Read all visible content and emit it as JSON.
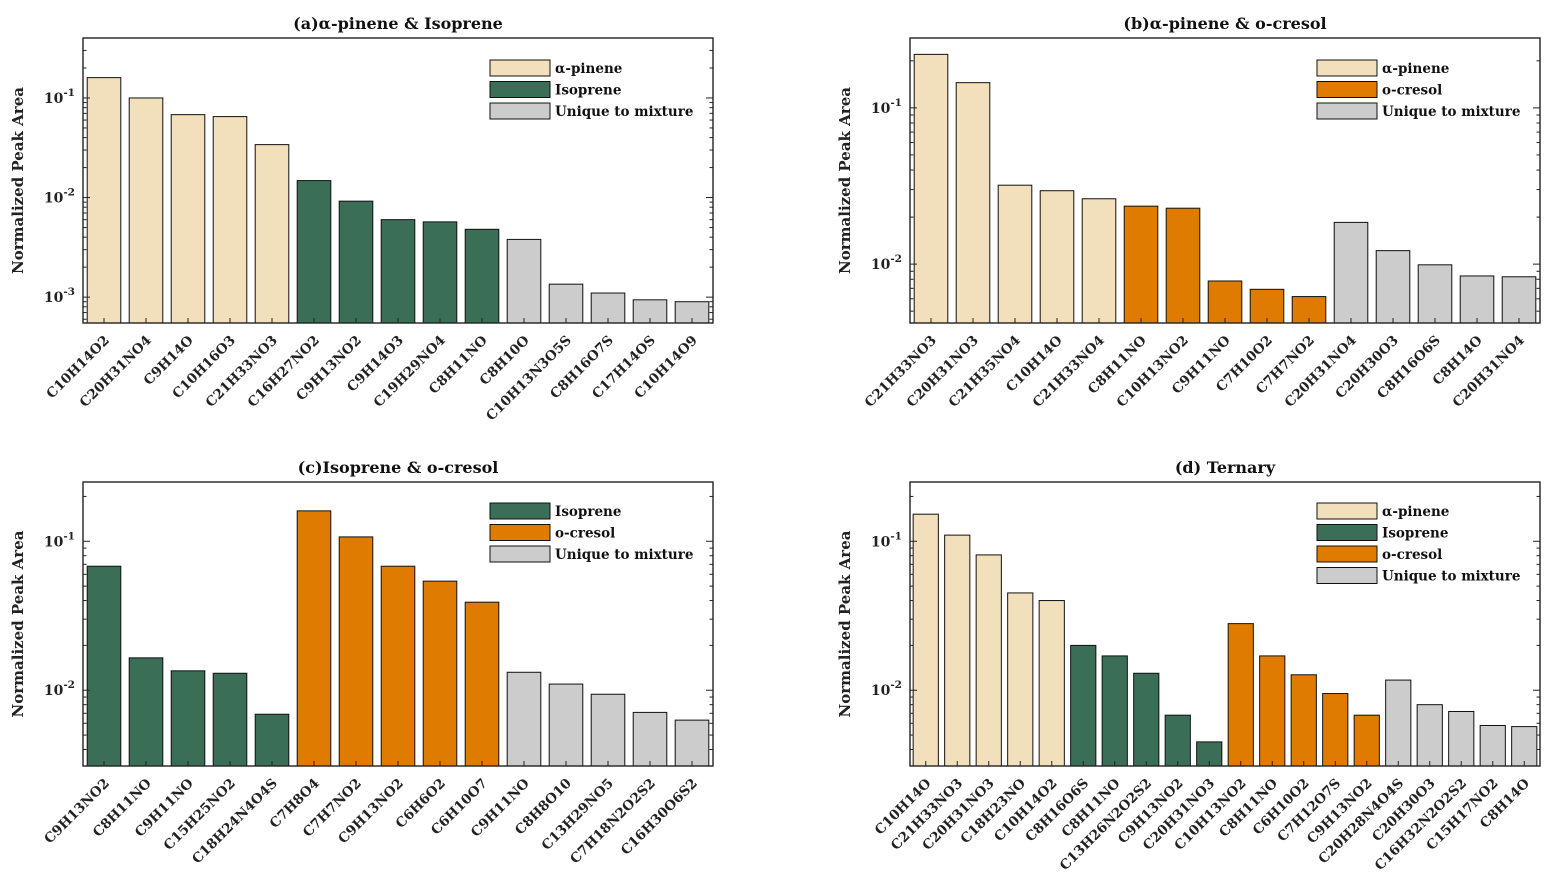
{
  "colors": {
    "alpha_pinene": "#f2dfbb",
    "isoprene": "#3a6e57",
    "o_cresol": "#df7c00",
    "unique": "#cccccc"
  },
  "chart_data": [
    {
      "type": "bar",
      "title": "(a)α-pinene & Isoprene",
      "ylabel": "Normalized Peak Area",
      "yscale": "log",
      "ylim": [
        0.00055,
        0.4
      ],
      "yticks": [
        {
          "v": 0.1,
          "label": "10",
          "exp": "-1"
        },
        {
          "v": 0.01,
          "label": "10",
          "exp": "-2"
        },
        {
          "v": 0.001,
          "label": "10",
          "exp": "-3"
        }
      ],
      "legend": [
        {
          "key": "alpha_pinene",
          "label": "α-pinene"
        },
        {
          "key": "isoprene",
          "label": "Isoprene"
        },
        {
          "key": "unique",
          "label": "Unique to mixture"
        }
      ],
      "legend_position": "top-right",
      "categories": [
        "C10H14O2",
        "C20H31NO4",
        "C9H14O",
        "C10H16O3",
        "C21H33NO3",
        "C16H27NO2",
        "C9H13NO2",
        "C9H14O3",
        "C19H29NO4",
        "C8H11NO",
        "C8H10O",
        "C10H13N3O5S",
        "C8H16O7S",
        "C17H14OS",
        "C10H14O9"
      ],
      "values": [
        0.16,
        0.1,
        0.068,
        0.065,
        0.034,
        0.0148,
        0.0092,
        0.006,
        0.0057,
        0.0048,
        0.0038,
        0.00135,
        0.0011,
        0.00094,
        0.0009
      ],
      "groups": [
        "alpha_pinene",
        "alpha_pinene",
        "alpha_pinene",
        "alpha_pinene",
        "alpha_pinene",
        "isoprene",
        "isoprene",
        "isoprene",
        "isoprene",
        "isoprene",
        "unique",
        "unique",
        "unique",
        "unique",
        "unique"
      ]
    },
    {
      "type": "bar",
      "title": "(b)α-pinene & o-cresol",
      "ylabel": "Normalized Peak Area",
      "yscale": "log",
      "ylim": [
        0.0042,
        0.28
      ],
      "yticks": [
        {
          "v": 0.1,
          "label": "10",
          "exp": "-1"
        },
        {
          "v": 0.01,
          "label": "10",
          "exp": "-2"
        }
      ],
      "legend": [
        {
          "key": "alpha_pinene",
          "label": "α-pinene"
        },
        {
          "key": "o_cresol",
          "label": "o-cresol"
        },
        {
          "key": "unique",
          "label": "Unique to mixture"
        }
      ],
      "legend_position": "top-right",
      "categories": [
        "C21H33NO3",
        "C20H31NO3",
        "C21H35NO4",
        "C10H14O",
        "C21H33NO4",
        "C8H11NO",
        "C10H13NO2",
        "C9H11NO",
        "C7H10O2",
        "C7H7NO2",
        "C20H31NO4",
        "C20H30O3",
        "C8H16O6S",
        "C8H14O",
        "C20H31NO4"
      ],
      "values": [
        0.22,
        0.145,
        0.032,
        0.0295,
        0.0262,
        0.0235,
        0.0228,
        0.0078,
        0.0069,
        0.0062,
        0.0185,
        0.0122,
        0.0099,
        0.0084,
        0.0083
      ],
      "groups": [
        "alpha_pinene",
        "alpha_pinene",
        "alpha_pinene",
        "alpha_pinene",
        "alpha_pinene",
        "o_cresol",
        "o_cresol",
        "o_cresol",
        "o_cresol",
        "o_cresol",
        "unique",
        "unique",
        "unique",
        "unique",
        "unique"
      ]
    },
    {
      "type": "bar",
      "title": "(c)Isoprene & o-cresol",
      "ylabel": "Normalized Peak Area",
      "yscale": "log",
      "ylim": [
        0.0031,
        0.25
      ],
      "yticks": [
        {
          "v": 0.1,
          "label": "10",
          "exp": "-1"
        },
        {
          "v": 0.01,
          "label": "10",
          "exp": "-2"
        }
      ],
      "legend": [
        {
          "key": "isoprene",
          "label": "Isoprene"
        },
        {
          "key": "o_cresol",
          "label": "o-cresol"
        },
        {
          "key": "unique",
          "label": "Unique to mixture"
        }
      ],
      "legend_position": "top-right",
      "categories": [
        "C9H13NO2",
        "C8H11NO",
        "C9H11NO",
        "C15H25NO2",
        "C18H24N4O4S",
        "C7H8O4",
        "C7H7NO2",
        "C9H13NO2",
        "C6H6O2",
        "C6H10O7",
        "C9H11NO",
        "C8H8O10",
        "C13H29NO5",
        "C7H18N2O2S2",
        "C16H30O6S2"
      ],
      "values": [
        0.068,
        0.0165,
        0.0135,
        0.013,
        0.0069,
        0.16,
        0.107,
        0.068,
        0.054,
        0.039,
        0.0132,
        0.011,
        0.0094,
        0.0071,
        0.0063
      ],
      "groups": [
        "isoprene",
        "isoprene",
        "isoprene",
        "isoprene",
        "isoprene",
        "o_cresol",
        "o_cresol",
        "o_cresol",
        "o_cresol",
        "o_cresol",
        "unique",
        "unique",
        "unique",
        "unique",
        "unique"
      ]
    },
    {
      "type": "bar",
      "title": "(d) Ternary",
      "ylabel": "Normalized Peak Area",
      "yscale": "log",
      "ylim": [
        0.0031,
        0.25
      ],
      "yticks": [
        {
          "v": 0.1,
          "label": "10",
          "exp": "-1"
        },
        {
          "v": 0.01,
          "label": "10",
          "exp": "-2"
        }
      ],
      "legend": [
        {
          "key": "alpha_pinene",
          "label": "α-pinene"
        },
        {
          "key": "isoprene",
          "label": "Isoprene"
        },
        {
          "key": "o_cresol",
          "label": "o-cresol"
        },
        {
          "key": "unique",
          "label": "Unique to mixture"
        }
      ],
      "legend_position": "top-right",
      "categories": [
        "C10H14O",
        "C21H33NO3",
        "C20H31NO3",
        "C18H23NO",
        "C10H14O2",
        "C8H16O6S",
        "C8H11NO",
        "C13H26N2O2S2",
        "C9H13NO2",
        "C20H31NO3",
        "C10H13NO2",
        "C8H11NO",
        "C6H10O2",
        "C7H12O7S",
        "C9H13NO2",
        "C20H28N4O4S",
        "C20H30O3",
        "C16H32N2O2S2",
        "C15H17NO2",
        "C8H14O"
      ],
      "values": [
        0.152,
        0.11,
        0.081,
        0.045,
        0.04,
        0.02,
        0.017,
        0.013,
        0.0068,
        0.0045,
        0.028,
        0.017,
        0.0127,
        0.0095,
        0.0068,
        0.0117,
        0.008,
        0.0072,
        0.0058,
        0.0057
      ],
      "groups": [
        "alpha_pinene",
        "alpha_pinene",
        "alpha_pinene",
        "alpha_pinene",
        "alpha_pinene",
        "isoprene",
        "isoprene",
        "isoprene",
        "isoprene",
        "isoprene",
        "o_cresol",
        "o_cresol",
        "o_cresol",
        "o_cresol",
        "o_cresol",
        "unique",
        "unique",
        "unique",
        "unique",
        "unique"
      ]
    }
  ]
}
